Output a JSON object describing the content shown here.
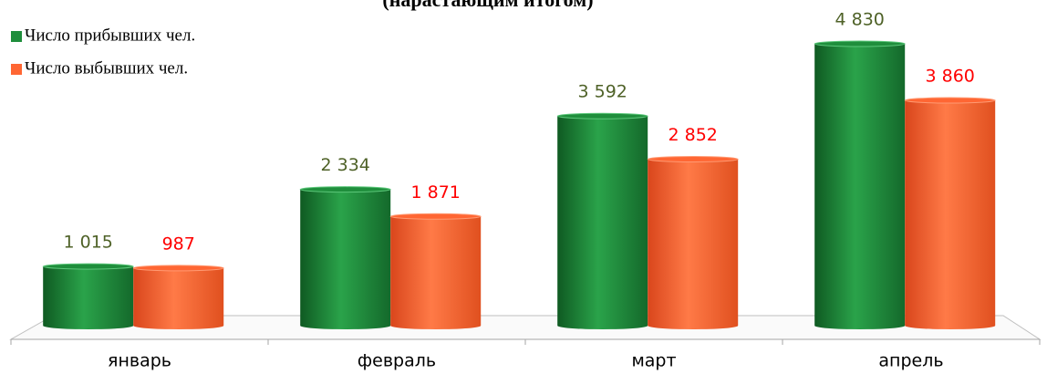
{
  "chart_data": {
    "type": "bar",
    "title": "(нарастающим итогом)",
    "categories": [
      "январь",
      "февраль",
      "март",
      "апрель"
    ],
    "series": [
      {
        "name": "Число прибывших  чел.",
        "color": "#1f8e3c",
        "label_color": "#4f6228",
        "values": [
          1015,
          2334,
          3592,
          4830
        ],
        "value_labels": [
          "1 015",
          "2 334",
          "3 592",
          "4 830"
        ]
      },
      {
        "name": "Число выбывших чел.",
        "color": "#ff6633",
        "label_color": "#ff0000",
        "values": [
          987,
          1871,
          2852,
          3860
        ],
        "value_labels": [
          "987",
          "1 871",
          "2 852",
          "3 860"
        ]
      }
    ],
    "legend": "top-left"
  }
}
